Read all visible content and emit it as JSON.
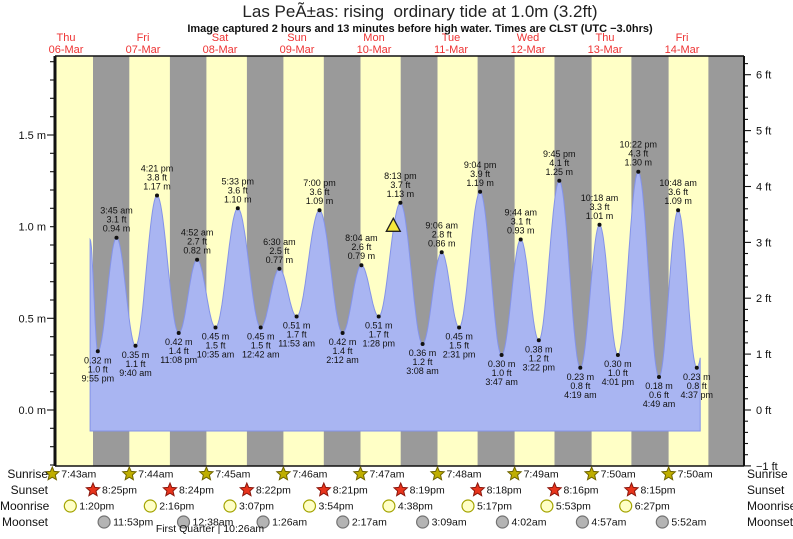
{
  "title": "Las PeÃ±as: rising  ordinary tide at 1.0m (3.2ft)",
  "subtitle": "Image captured 2 hours and 13 minutes before high water. Times are CLST (UTC −3.0hrs)",
  "colors": {
    "day_band": "#ffffc6",
    "night_band": "#9a9a9a",
    "tide_fill": "#a9b5f2",
    "tide_edge": "#8493e8",
    "day_label_red": "#ee3333",
    "axis": "#111111",
    "marker_fill": "#f6e83c",
    "sunrise_star": "#bfae00",
    "sunrise_star_edge": "#6e6400",
    "sunset_star": "#e8341c",
    "sunset_star_edge": "#8b170d",
    "moonrise_disc": "#ffffc6",
    "moonrise_disc_edge": "#a3a300",
    "moonset_disc": "#b4b4b4",
    "moonset_disc_edge": "#737373"
  },
  "chart_data": {
    "type": "area",
    "title": "Las PeÃ±as: rising  ordinary tide at 1.0m (3.2ft)",
    "ylabel_left": "meters",
    "ylabel_right": "feet",
    "ylim_m": [
      -0.3,
      1.93
    ],
    "days": [
      {
        "dow": "Thu",
        "date": "06-Mar"
      },
      {
        "dow": "Fri",
        "date": "07-Mar"
      },
      {
        "dow": "Sat",
        "date": "08-Mar"
      },
      {
        "dow": "Sun",
        "date": "09-Mar"
      },
      {
        "dow": "Mon",
        "date": "10-Mar"
      },
      {
        "dow": "Tue",
        "date": "11-Mar"
      },
      {
        "dow": "Wed",
        "date": "12-Mar"
      },
      {
        "dow": "Thu",
        "date": "13-Mar"
      },
      {
        "dow": "Fri",
        "date": "14-Mar"
      }
    ],
    "left_ticks": [
      {
        "label": "0.0 m",
        "value": 0.0
      },
      {
        "label": "0.5 m",
        "value": 0.5
      },
      {
        "label": "1.0 m",
        "value": 1.0
      },
      {
        "label": "1.5 m",
        "value": 1.5
      }
    ],
    "right_ticks": [
      {
        "label": "−1 ft",
        "value": -1
      },
      {
        "label": "0 ft",
        "value": 0
      },
      {
        "label": "1 ft",
        "value": 1
      },
      {
        "label": "2 ft",
        "value": 2
      },
      {
        "label": "3 ft",
        "value": 3
      },
      {
        "label": "4 ft",
        "value": 4
      },
      {
        "label": "5 ft",
        "value": 5
      },
      {
        "label": "6 ft",
        "value": 6
      }
    ],
    "tide_events": [
      {
        "type": "low",
        "day": 0,
        "time": "9:55 pm",
        "ft": "1.0 ft",
        "m": "0.32 m",
        "value_m": 0.32
      },
      {
        "type": "high",
        "day": 1,
        "time": "3:45 am",
        "ft": "3.1 ft",
        "m": "0.94 m",
        "value_m": 0.94
      },
      {
        "type": "low",
        "day": 1,
        "time": "9:40 am",
        "ft": "1.1 ft",
        "m": "0.35 m",
        "value_m": 0.35
      },
      {
        "type": "high",
        "day": 1,
        "time": "4:21 pm",
        "ft": "3.8 ft",
        "m": "1.17 m",
        "value_m": 1.17
      },
      {
        "type": "low",
        "day": 1,
        "time": "11:08 pm",
        "ft": "1.4 ft",
        "m": "0.42 m",
        "value_m": 0.42
      },
      {
        "type": "high",
        "day": 2,
        "time": "4:52 am",
        "ft": "2.7 ft",
        "m": "0.82 m",
        "value_m": 0.82
      },
      {
        "type": "low",
        "day": 2,
        "time": "10:35 am",
        "ft": "1.5 ft",
        "m": "0.45 m",
        "value_m": 0.45
      },
      {
        "type": "high",
        "day": 2,
        "time": "5:33 pm",
        "ft": "3.6 ft",
        "m": "1.10 m",
        "value_m": 1.1
      },
      {
        "type": "low",
        "day": 3,
        "time": "12:42 am",
        "ft": "1.5 ft",
        "m": "0.45 m",
        "value_m": 0.45
      },
      {
        "type": "high",
        "day": 3,
        "time": "6:30 am",
        "ft": "2.5 ft",
        "m": "0.77 m",
        "value_m": 0.77
      },
      {
        "type": "low",
        "day": 3,
        "time": "11:53 am",
        "ft": "1.7 ft",
        "m": "0.51 m",
        "value_m": 0.51
      },
      {
        "type": "high",
        "day": 3,
        "time": "7:00 pm",
        "ft": "3.6 ft",
        "m": "1.09 m",
        "value_m": 1.09
      },
      {
        "type": "low",
        "day": 4,
        "time": "2:12 am",
        "ft": "1.4 ft",
        "m": "0.42 m",
        "value_m": 0.42
      },
      {
        "type": "high",
        "day": 4,
        "time": "8:04 am",
        "ft": "2.6 ft",
        "m": "0.79 m",
        "value_m": 0.79
      },
      {
        "type": "low",
        "day": 4,
        "time": "1:28 pm",
        "ft": "1.7 ft",
        "m": "0.51 m",
        "value_m": 0.51
      },
      {
        "type": "high",
        "day": 4,
        "time": "8:13 pm",
        "ft": "3.7 ft",
        "m": "1.13 m",
        "value_m": 1.13
      },
      {
        "type": "low",
        "day": 5,
        "time": "3:08 am",
        "ft": "1.2 ft",
        "m": "0.36 m",
        "value_m": 0.36
      },
      {
        "type": "high",
        "day": 5,
        "time": "9:06 am",
        "ft": "2.8 ft",
        "m": "0.86 m",
        "value_m": 0.86
      },
      {
        "type": "low",
        "day": 5,
        "time": "2:31 pm",
        "ft": "1.5 ft",
        "m": "0.45 m",
        "value_m": 0.45
      },
      {
        "type": "high",
        "day": 5,
        "time": "9:04 pm",
        "ft": "3.9 ft",
        "m": "1.19 m",
        "value_m": 1.19
      },
      {
        "type": "low",
        "day": 6,
        "time": "3:47 am",
        "ft": "1.0 ft",
        "m": "0.30 m",
        "value_m": 0.3
      },
      {
        "type": "high",
        "day": 6,
        "time": "9:44 am",
        "ft": "3.1 ft",
        "m": "0.93 m",
        "value_m": 0.93
      },
      {
        "type": "low",
        "day": 6,
        "time": "3:22 pm",
        "ft": "1.2 ft",
        "m": "0.38 m",
        "value_m": 0.38
      },
      {
        "type": "high",
        "day": 6,
        "time": "9:45 pm",
        "ft": "4.1 ft",
        "m": "1.25 m",
        "value_m": 1.25
      },
      {
        "type": "low",
        "day": 7,
        "time": "4:19 am",
        "ft": "0.8 ft",
        "m": "0.23 m",
        "value_m": 0.23
      },
      {
        "type": "high",
        "day": 7,
        "time": "10:18 am",
        "ft": "3.3 ft",
        "m": "1.01 m",
        "value_m": 1.01
      },
      {
        "type": "low",
        "day": 7,
        "time": "4:01 pm",
        "ft": "1.0 ft",
        "m": "0.30 m",
        "value_m": 0.3
      },
      {
        "type": "high",
        "day": 7,
        "time": "10:22 pm",
        "ft": "4.3 ft",
        "m": "1.30 m",
        "value_m": 1.3
      },
      {
        "type": "low",
        "day": 8,
        "time": "4:49 am",
        "ft": "0.6 ft",
        "m": "0.18 m",
        "value_m": 0.18
      },
      {
        "type": "high",
        "day": 8,
        "time": "10:48 am",
        "ft": "3.6 ft",
        "m": "1.09 m",
        "value_m": 1.09
      },
      {
        "type": "low",
        "day": 8,
        "time": "4:37 pm",
        "ft": "0.8 ft",
        "m": "0.23 m",
        "value_m": 0.23
      }
    ],
    "current_marker": {
      "day": 4,
      "hour": 18.0,
      "value_m": 0.98
    },
    "curve": {
      "start": {
        "day": 0,
        "hour": 19.5,
        "value_m": 0.93
      },
      "end": {
        "day": 8,
        "hour": 17.9
      },
      "virtual_end_peak": {
        "day": 8,
        "hour": 23.0,
        "value_m": 1.05
      }
    }
  },
  "astro": {
    "row_labels": [
      "Sunrise",
      "Sunset",
      "Moonrise",
      "Moonset"
    ],
    "sunrise": [
      {
        "day": 0,
        "time": "7:43am"
      },
      {
        "day": 1,
        "time": "7:44am"
      },
      {
        "day": 2,
        "time": "7:45am"
      },
      {
        "day": 3,
        "time": "7:46am"
      },
      {
        "day": 4,
        "time": "7:47am"
      },
      {
        "day": 5,
        "time": "7:48am"
      },
      {
        "day": 6,
        "time": "7:49am"
      },
      {
        "day": 7,
        "time": "7:50am"
      },
      {
        "day": 8,
        "time": "7:50am"
      }
    ],
    "sunset": [
      {
        "day": 0,
        "time": "8:25pm"
      },
      {
        "day": 1,
        "time": "8:24pm"
      },
      {
        "day": 2,
        "time": "8:22pm"
      },
      {
        "day": 3,
        "time": "8:21pm"
      },
      {
        "day": 4,
        "time": "8:19pm"
      },
      {
        "day": 5,
        "time": "8:18pm"
      },
      {
        "day": 6,
        "time": "8:16pm"
      },
      {
        "day": 7,
        "time": "8:15pm"
      }
    ],
    "moonrise": [
      {
        "day": 0,
        "time": "1:20pm"
      },
      {
        "day": 1,
        "time": "2:16pm"
      },
      {
        "day": 2,
        "time": "3:07pm"
      },
      {
        "day": 3,
        "time": "3:54pm"
      },
      {
        "day": 4,
        "time": "4:38pm"
      },
      {
        "day": 5,
        "time": "5:17pm"
      },
      {
        "day": 6,
        "time": "5:53pm"
      },
      {
        "day": 7,
        "time": "6:27pm"
      }
    ],
    "moonset": [
      {
        "day": 0,
        "time": "11:53pm"
      },
      {
        "day": 2,
        "time": "12:38am"
      },
      {
        "day": 3,
        "time": "1:26am"
      },
      {
        "day": 4,
        "time": "2:17am"
      },
      {
        "day": 5,
        "time": "3:09am"
      },
      {
        "day": 6,
        "time": "4:02am"
      },
      {
        "day": 7,
        "time": "4:57am"
      },
      {
        "day": 8,
        "time": "5:52am"
      }
    ],
    "moon_phase": "First Quarter | 10:26am"
  }
}
